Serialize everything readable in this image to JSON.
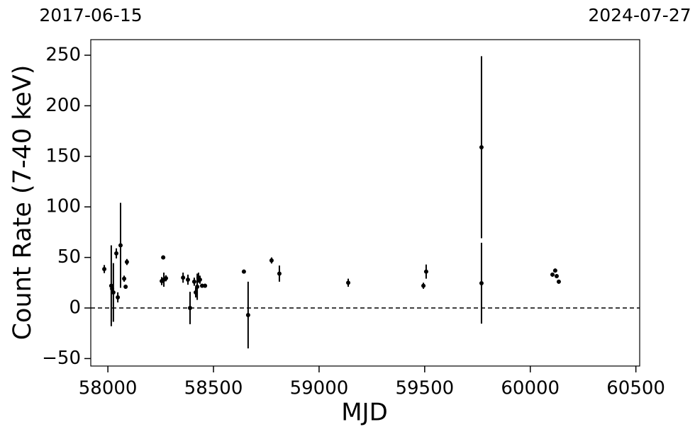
{
  "chart_data": {
    "type": "scatter",
    "xlabel": "MJD",
    "ylabel": "Count Rate (7-40 keV)",
    "x": [
      57983,
      58016,
      58020,
      58026,
      58040,
      58047,
      58060,
      58077,
      58084,
      58090,
      58255,
      58262,
      58265,
      58275,
      58356,
      58379,
      58389,
      58409,
      58416,
      58423,
      58429,
      58436,
      58446,
      58460,
      58644,
      58664,
      58775,
      58812,
      59138,
      59494,
      59507,
      59769,
      59769,
      60105,
      60118,
      60125,
      60135
    ],
    "values": [
      38.5,
      22,
      19,
      15.4,
      54,
      10.5,
      62,
      29,
      21,
      45.5,
      26.6,
      50,
      28,
      29.4,
      30,
      28,
      0,
      26,
      15.4,
      21,
      30,
      28,
      22,
      22,
      36,
      -7,
      47,
      34,
      25,
      22,
      36,
      159,
      24.5,
      33,
      37,
      31.5,
      26
    ],
    "errors": [
      4,
      40,
      4,
      29,
      5,
      5,
      42,
      3,
      2,
      3,
      4,
      2,
      7,
      3,
      5,
      5,
      16,
      4,
      5,
      13,
      5,
      4,
      2,
      2,
      2,
      33,
      3,
      8,
      4,
      3,
      7,
      90,
      40,
      2,
      2,
      2,
      2
    ],
    "color": "#000000",
    "xlim": [
      57919,
      60518
    ],
    "ylim": [
      -57.4,
      265.4
    ],
    "xticks": [
      58000,
      58500,
      59000,
      59500,
      60000,
      60500
    ],
    "yticks": [
      {
        "value": -50,
        "label": "−50"
      },
      0,
      50,
      100,
      150,
      200,
      250
    ],
    "top_ticks": [
      {
        "value": 57919,
        "label": "2017-06-15"
      },
      {
        "value": 60518,
        "label": "2024-07-27"
      }
    ],
    "hline": 0
  }
}
